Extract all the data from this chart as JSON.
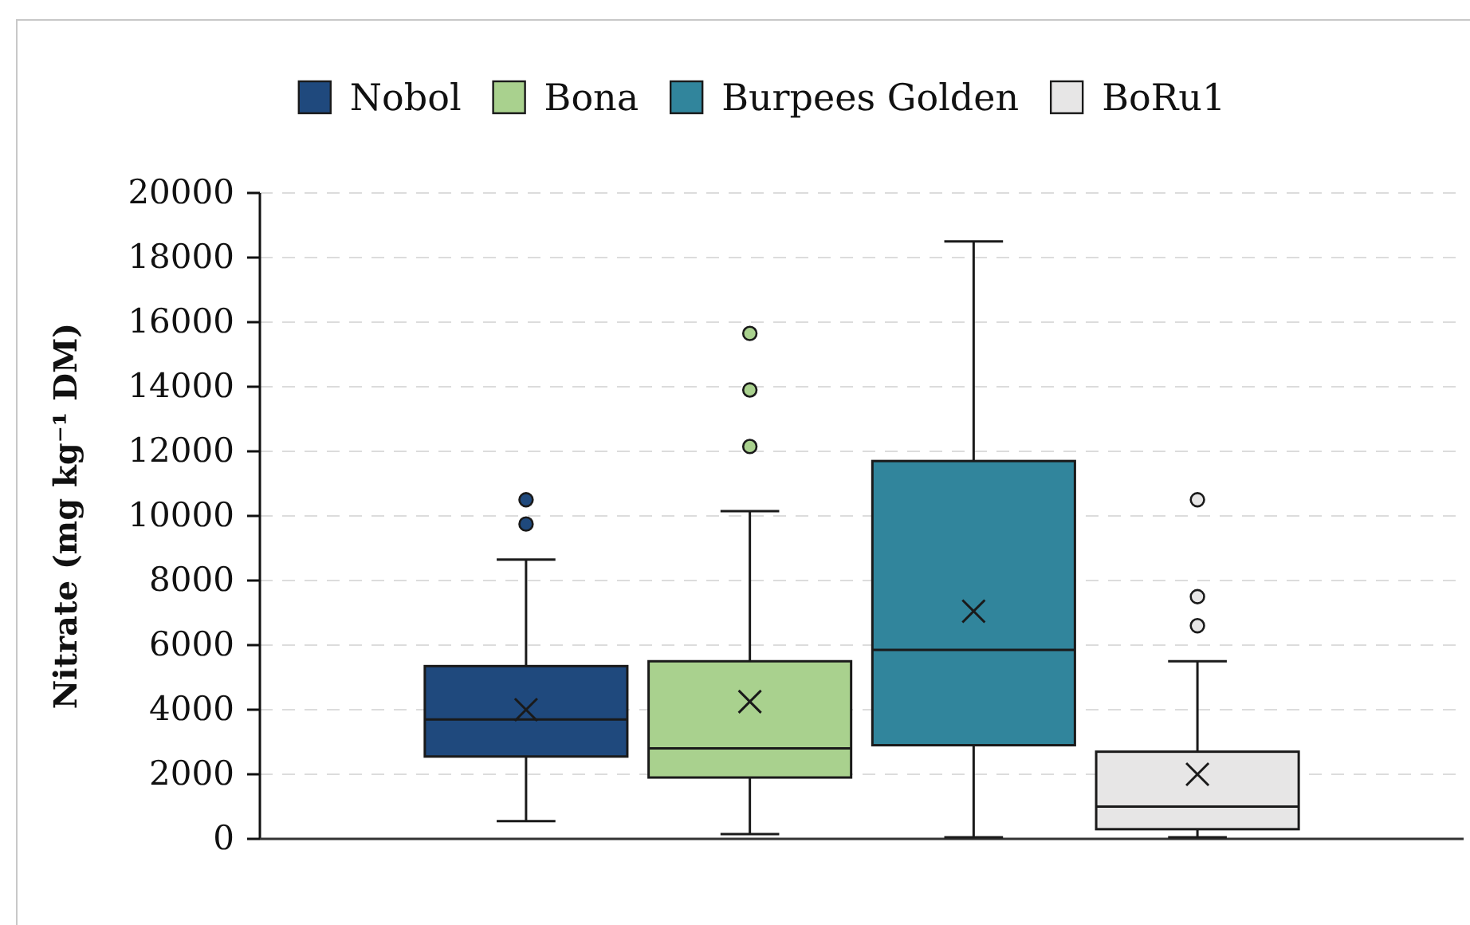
{
  "chart_data": {
    "type": "box",
    "ylabel": "Nitrate (mg kg⁻¹ DM)",
    "categories": [
      null
    ],
    "series": [
      {
        "name": "Nobol",
        "color": "#1f497d",
        "boxes": [
          {
            "low": 550,
            "q1": 2550,
            "median": 3700,
            "q3": 5350,
            "high": 8650,
            "mean": 4000,
            "outliers": [
              9750,
              10500
            ]
          }
        ]
      },
      {
        "name": "Bona",
        "color": "#a9d18e",
        "boxes": [
          {
            "low": 150,
            "q1": 1900,
            "median": 2800,
            "q3": 5500,
            "high": 10150,
            "mean": 4250,
            "outliers": [
              12150,
              13900,
              15650
            ]
          }
        ]
      },
      {
        "name": "Burpees Golden",
        "color": "#31859c",
        "boxes": [
          {
            "low": 50,
            "q1": 2900,
            "median": 5850,
            "q3": 11700,
            "high": 18500,
            "mean": 7050
          }
        ]
      },
      {
        "name": "BoRu1",
        "color": "#e7e6e6",
        "boxes": [
          {
            "low": 50,
            "q1": 300,
            "median": 1000,
            "q3": 2700,
            "high": 5500,
            "mean": 2000,
            "outliers": [
              6600,
              7500,
              10500
            ]
          }
        ]
      }
    ],
    "ylim": [
      0,
      20000
    ],
    "yticks": [
      0,
      2000,
      4000,
      6000,
      8000,
      10000,
      12000,
      14000,
      16000,
      18000,
      20000
    ],
    "grid": "y",
    "legend": "top"
  }
}
